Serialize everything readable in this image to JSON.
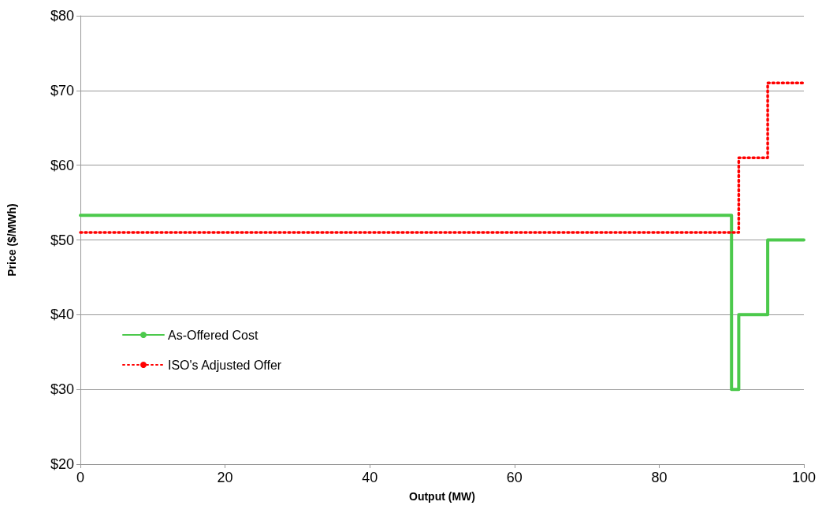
{
  "chart_data": {
    "type": "step",
    "xlabel": "Output (MW)",
    "ylabel": "Price ($/MWh)",
    "xlim": [
      0,
      100
    ],
    "xticks": [
      0,
      20,
      40,
      60,
      80,
      100
    ],
    "ylim": [
      20,
      80
    ],
    "yticks": [
      {
        "value": 20,
        "label": "$20"
      },
      {
        "value": 30,
        "label": "$30"
      },
      {
        "value": 40,
        "label": "$40"
      },
      {
        "value": 50,
        "label": "$50"
      },
      {
        "value": 60,
        "label": "$60"
      },
      {
        "value": 70,
        "label": "$70"
      },
      {
        "value": 80,
        "label": "$80"
      }
    ],
    "grid": "y",
    "legend": "left",
    "marker": "none",
    "series": [
      {
        "name": "As-Offered Cost",
        "color": "#4cc94c",
        "line_style": "solid",
        "x": [
          0,
          90,
          91,
          95,
          100
        ],
        "values": [
          53.3,
          30,
          40,
          50,
          50
        ]
      },
      {
        "name": "ISO's Adjusted Offer",
        "color": "#ff0000",
        "line_style": "dotted",
        "x": [
          0,
          91,
          95,
          100
        ],
        "values": [
          51,
          61,
          71,
          71
        ]
      }
    ]
  }
}
